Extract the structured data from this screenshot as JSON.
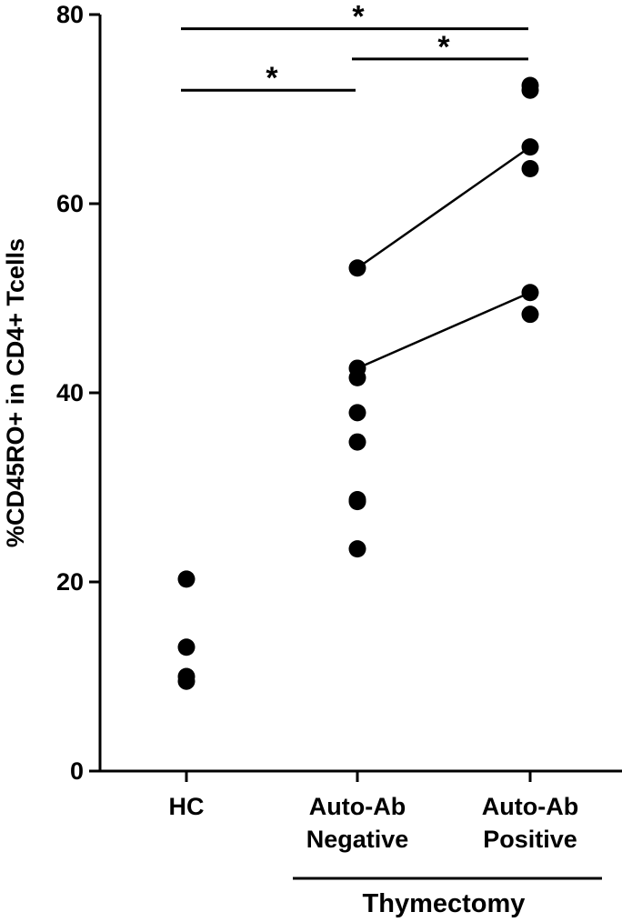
{
  "chart_data": {
    "type": "scatter",
    "title": "",
    "xlabel": "",
    "ylabel": "%CD45RO+ in CD4+ Tcells",
    "ylim": [
      0,
      80
    ],
    "yticks": [
      0,
      20,
      40,
      60,
      80
    ],
    "grid": false,
    "categories": [
      {
        "lines": [
          "HC"
        ]
      },
      {
        "lines": [
          "Auto-Ab",
          "Negative"
        ]
      },
      {
        "lines": [
          "Auto-Ab",
          "Positive"
        ]
      }
    ],
    "group_label": "Thymectomy",
    "group_spans": [
      1,
      2
    ],
    "points": [
      [
        20.3,
        13.1,
        10.0,
        9.5
      ],
      [
        53.2,
        42.6,
        41.6,
        37.9,
        34.8,
        28.7,
        28.5,
        23.5
      ],
      [
        72.5,
        72.0,
        66.0,
        63.7,
        50.6,
        48.3
      ]
    ],
    "paired_lines": [
      {
        "from": [
          1,
          53.2
        ],
        "to": [
          2,
          66.0
        ]
      },
      {
        "from": [
          1,
          42.6
        ],
        "to": [
          2,
          50.6
        ]
      }
    ],
    "significance": [
      {
        "from": 0,
        "to": 2,
        "y": 78.5,
        "label": "*"
      },
      {
        "from": 1,
        "to": 2,
        "y": 75.3,
        "label": "*"
      },
      {
        "from": 0,
        "to": 1,
        "y": 72.0,
        "label": "*"
      }
    ]
  }
}
